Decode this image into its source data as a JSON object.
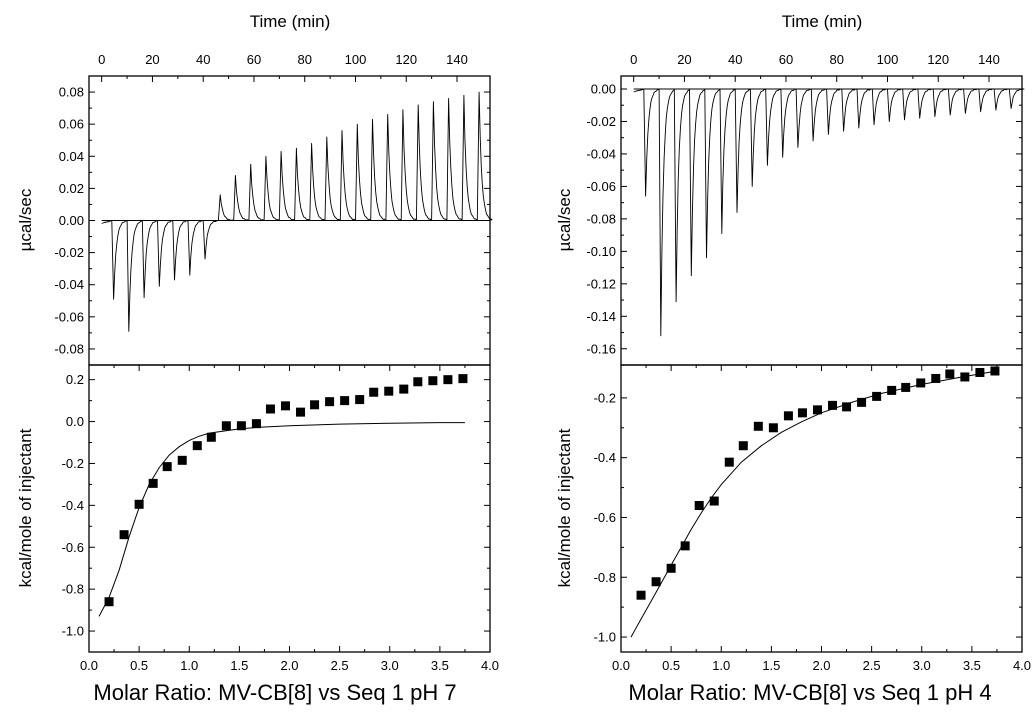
{
  "figure": {
    "panels": [
      {
        "top_xlabel": "Time (min)",
        "top_ylabel": "µcal/sec",
        "bottom_ylabel": "kcal/mole of injectant",
        "xlabel": "Molar Ratio: MV-CB[8] vs Seq 1 pH 7"
      },
      {
        "top_xlabel": "Time (min)",
        "top_ylabel": "µcal/sec",
        "bottom_ylabel": "kcal/mole of injectant",
        "xlabel": "Molar Ratio: MV-CB[8] vs Seq 1 pH 4"
      }
    ]
  },
  "chart_data": [
    {
      "type": "line",
      "panel": "left-top",
      "xlabel": "Time (min)",
      "ylabel": "µcal/sec",
      "xlim": [
        -5,
        153
      ],
      "ylim": [
        -0.09,
        0.09
      ],
      "x_ticks": [
        "0",
        "20",
        "40",
        "60",
        "80",
        "100",
        "120",
        "140"
      ],
      "y_ticks": [
        "-0.08",
        "-0.06",
        "-0.04",
        "-0.02",
        "0.00",
        "0.02",
        "0.04",
        "0.06",
        "0.08"
      ],
      "baseline": 0.0,
      "injection_times": [
        4,
        10,
        16,
        22,
        28,
        34,
        40,
        46,
        52,
        58,
        64,
        70,
        76,
        82,
        88,
        94,
        100,
        106,
        112,
        118,
        124,
        130,
        136,
        142,
        148
      ],
      "peak_values": [
        -0.049,
        -0.069,
        -0.048,
        -0.041,
        -0.037,
        -0.034,
        -0.024,
        0.016,
        0.028,
        0.035,
        0.04,
        0.043,
        0.045,
        0.048,
        0.052,
        0.056,
        0.06,
        0.063,
        0.066,
        0.069,
        0.072,
        0.074,
        0.076,
        0.078,
        0.08
      ]
    },
    {
      "type": "scatter",
      "panel": "left-bottom",
      "xlabel": "Molar Ratio: MV-CB[8] vs Seq 1 pH 7",
      "ylabel": "kcal/mole of injectant",
      "xlim": [
        0,
        4.0
      ],
      "ylim": [
        -1.1,
        0.27
      ],
      "x_ticks": [
        "0.0",
        "0.5",
        "1.0",
        "1.5",
        "2.0",
        "2.5",
        "3.0",
        "3.5",
        "4.0"
      ],
      "y_ticks": [
        "-1.0",
        "-0.8",
        "-0.6",
        "-0.4",
        "-0.2",
        "0.0",
        "0.2"
      ],
      "x": [
        0.2,
        0.35,
        0.5,
        0.64,
        0.78,
        0.93,
        1.08,
        1.22,
        1.37,
        1.52,
        1.67,
        1.81,
        1.96,
        2.11,
        2.25,
        2.4,
        2.55,
        2.7,
        2.84,
        2.99,
        3.14,
        3.28,
        3.43,
        3.58,
        3.73
      ],
      "y": [
        -0.86,
        -0.54,
        -0.395,
        -0.295,
        -0.215,
        -0.185,
        -0.115,
        -0.075,
        -0.02,
        -0.02,
        -0.01,
        0.06,
        0.075,
        0.045,
        0.08,
        0.095,
        0.1,
        0.105,
        0.14,
        0.145,
        0.155,
        0.19,
        0.195,
        0.2,
        0.205
      ],
      "fit": {
        "x": [
          0.1,
          0.2,
          0.3,
          0.4,
          0.5,
          0.6,
          0.7,
          0.8,
          0.9,
          1.0,
          1.1,
          1.2,
          1.35,
          1.5,
          1.7,
          2.0,
          2.5,
          3.0,
          3.5,
          3.75
        ],
        "y": [
          -0.93,
          -0.84,
          -0.71,
          -0.55,
          -0.41,
          -0.3,
          -0.22,
          -0.16,
          -0.12,
          -0.09,
          -0.07,
          -0.055,
          -0.045,
          -0.035,
          -0.027,
          -0.02,
          -0.012,
          -0.008,
          -0.005,
          -0.005
        ]
      }
    },
    {
      "type": "line",
      "panel": "right-top",
      "xlabel": "Time (min)",
      "ylabel": "µcal/sec",
      "xlim": [
        -5,
        153
      ],
      "ylim": [
        -0.17,
        0.008
      ],
      "x_ticks": [
        "0",
        "20",
        "40",
        "60",
        "80",
        "100",
        "120",
        "140"
      ],
      "y_ticks": [
        "-0.16",
        "-0.14",
        "-0.12",
        "-0.10",
        "-0.08",
        "-0.06",
        "-0.04",
        "-0.02",
        "0.00"
      ],
      "baseline": 0.0,
      "injection_times": [
        4,
        10,
        16,
        22,
        28,
        34,
        40,
        46,
        52,
        58,
        64,
        70,
        76,
        82,
        88,
        94,
        100,
        106,
        112,
        118,
        124,
        130,
        136,
        142,
        148
      ],
      "peak_values": [
        -0.066,
        -0.152,
        -0.131,
        -0.115,
        -0.104,
        -0.089,
        -0.076,
        -0.06,
        -0.047,
        -0.042,
        -0.036,
        -0.032,
        -0.028,
        -0.026,
        -0.024,
        -0.022,
        -0.02,
        -0.019,
        -0.018,
        -0.017,
        -0.016,
        -0.015,
        -0.014,
        -0.013,
        -0.012
      ]
    },
    {
      "type": "scatter",
      "panel": "right-bottom",
      "xlabel": "Molar Ratio: MV-CB[8] vs Seq 1 pH 4",
      "ylabel": "kcal/mole of injectant",
      "xlim": [
        0,
        4.0
      ],
      "ylim": [
        -1.05,
        -0.09
      ],
      "x_ticks": [
        "0.0",
        "0.5",
        "1.0",
        "1.5",
        "2.0",
        "2.5",
        "3.0",
        "3.5",
        "4.0"
      ],
      "y_ticks": [
        "-1.0",
        "-0.8",
        "-0.6",
        "-0.4",
        "-0.2"
      ],
      "x": [
        0.2,
        0.35,
        0.5,
        0.64,
        0.78,
        0.93,
        1.08,
        1.22,
        1.37,
        1.52,
        1.67,
        1.81,
        1.96,
        2.11,
        2.25,
        2.4,
        2.55,
        2.7,
        2.84,
        2.99,
        3.14,
        3.28,
        3.43,
        3.58,
        3.73
      ],
      "y": [
        -0.86,
        -0.815,
        -0.77,
        -0.695,
        -0.56,
        -0.545,
        -0.415,
        -0.36,
        -0.295,
        -0.3,
        -0.26,
        -0.25,
        -0.24,
        -0.225,
        -0.23,
        -0.215,
        -0.195,
        -0.175,
        -0.165,
        -0.15,
        -0.135,
        -0.12,
        -0.13,
        -0.115,
        -0.11
      ],
      "fit": {
        "x": [
          0.1,
          0.2,
          0.3,
          0.4,
          0.5,
          0.6,
          0.7,
          0.8,
          0.9,
          1.0,
          1.2,
          1.4,
          1.6,
          1.8,
          2.0,
          2.3,
          2.6,
          3.0,
          3.4,
          3.75
        ],
        "y": [
          -1.0,
          -0.94,
          -0.88,
          -0.82,
          -0.76,
          -0.7,
          -0.64,
          -0.585,
          -0.535,
          -0.49,
          -0.415,
          -0.36,
          -0.315,
          -0.28,
          -0.25,
          -0.215,
          -0.185,
          -0.155,
          -0.13,
          -0.11
        ]
      }
    }
  ]
}
